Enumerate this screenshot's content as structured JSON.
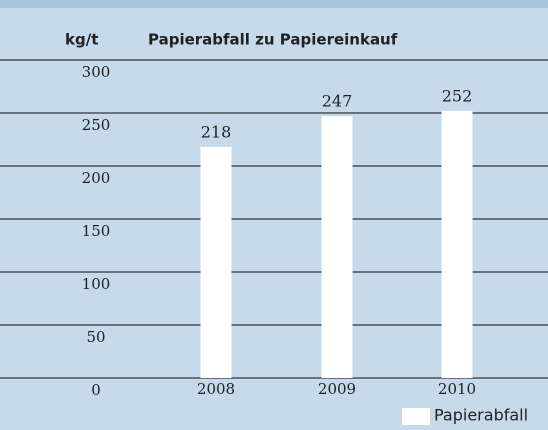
{
  "chart_data": {
    "type": "bar",
    "title": "Papierabfall zu Papiereinkauf",
    "y_label": "kg/t",
    "categories": [
      "2008",
      "2009",
      "2010"
    ],
    "series": [
      {
        "name": "Papierabfall",
        "color": "#ffffff",
        "values": [
          218,
          247,
          252
        ]
      }
    ],
    "ylim": [
      0,
      300
    ],
    "yticks": [
      0,
      50,
      100,
      150,
      200,
      250,
      300
    ],
    "grid": true,
    "legend": "bottom-right"
  }
}
